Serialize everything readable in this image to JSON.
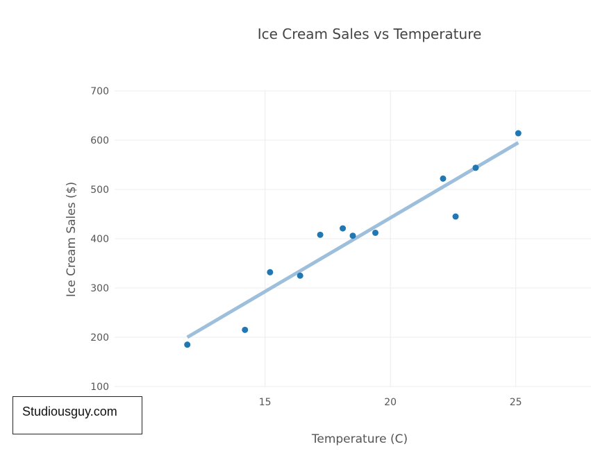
{
  "chart_data": {
    "type": "scatter",
    "title": "Ice Cream Sales vs Temperature",
    "xlabel": "Temperature (C)",
    "ylabel": "Ice Cream Sales ($)",
    "xlim": [
      9,
      28
    ],
    "ylim": [
      100,
      700
    ],
    "xticks": [
      15,
      20,
      25
    ],
    "yticks": [
      100,
      200,
      300,
      400,
      500,
      600,
      700
    ],
    "grid": true,
    "points": [
      {
        "x": 11.9,
        "y": 185
      },
      {
        "x": 14.2,
        "y": 215
      },
      {
        "x": 15.2,
        "y": 332
      },
      {
        "x": 16.4,
        "y": 325
      },
      {
        "x": 17.2,
        "y": 408
      },
      {
        "x": 18.1,
        "y": 421
      },
      {
        "x": 18.5,
        "y": 406
      },
      {
        "x": 19.4,
        "y": 412
      },
      {
        "x": 22.1,
        "y": 522
      },
      {
        "x": 22.6,
        "y": 445
      },
      {
        "x": 23.4,
        "y": 544
      },
      {
        "x": 25.1,
        "y": 614
      }
    ],
    "trendline": {
      "x": [
        11.9,
        25.1
      ],
      "y": [
        200,
        595
      ]
    },
    "colors": {
      "points": "#1f77b4",
      "trendline": "#9dbfdc"
    }
  },
  "watermark": "Studiousguy.com"
}
